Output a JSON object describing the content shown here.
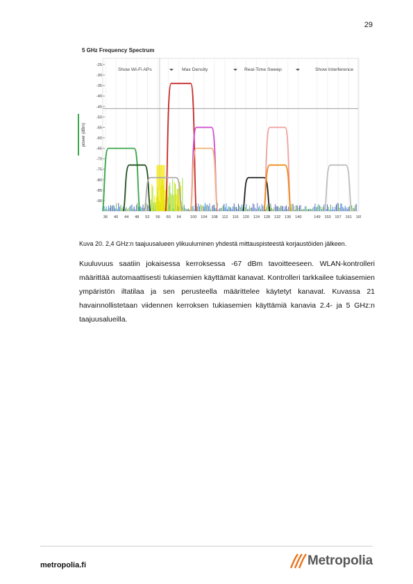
{
  "page_number": "29",
  "figure": {
    "title": "5 GHz Frequency Spectrum",
    "controls": [
      "Show Wi-Fi APs",
      "Max Density",
      "Real-Time Sweep",
      "Show Interference"
    ],
    "ylabel": "power (dBm)",
    "chart_data": {
      "type": "line",
      "title": "5 GHz Frequency Spectrum",
      "ylabel": "power (dBm)",
      "xlabel": "",
      "y_ticks": [
        "-25",
        "-30",
        "-35",
        "-40",
        "-45",
        "-50",
        "-55",
        "-60",
        "-65",
        "-70",
        "-75",
        "-80",
        "-85",
        "-90"
      ],
      "x_ticks": [
        "36",
        "40",
        "44",
        "48",
        "52",
        "56",
        "60",
        "64",
        "100",
        "104",
        "108",
        "112",
        "116",
        "120",
        "124",
        "128",
        "132",
        "136",
        "140",
        "149",
        "153",
        "157",
        "161",
        "165"
      ],
      "ylim": [
        -95,
        -22
      ],
      "threshold_dbm": -46,
      "series": [
        {
          "color": "#3aa64a",
          "start": 36,
          "end": 48,
          "peak": -65
        },
        {
          "color": "#1f4f1f",
          "start": 44,
          "end": 52,
          "peak": -73
        },
        {
          "color": "#c62828",
          "start": 60,
          "end": 100,
          "peak": -34
        },
        {
          "color": "#d24fd0",
          "start": 100,
          "end": 108,
          "peak": -55
        },
        {
          "color": "#f2b27a",
          "start": 100,
          "end": 108,
          "peak": -65
        },
        {
          "color": "#aaaaaa",
          "start": 52,
          "end": 64,
          "peak": -79
        },
        {
          "color": "#202020",
          "start": 120,
          "end": 128,
          "peak": -79
        },
        {
          "color": "#f2a0a0",
          "start": 128,
          "end": 136,
          "peak": -55
        },
        {
          "color": "#ef8a1a",
          "start": 128,
          "end": 136,
          "peak": -73
        },
        {
          "color": "#bdbdbd",
          "start": 153,
          "end": 161,
          "peak": -73
        }
      ]
    }
  },
  "caption": "Kuva 20. 2,4 GHz:n taajuusalueen ylikuuluminen yhdestä mittauspisteestä korjaustöiden jälkeen.",
  "paragraph": "Kuuluvuus saatiin jokaisessa kerroksessa -67 dBm tavoitteeseen. WLAN-kontrolleri määrittää automaattisesti tukiasemien käyttämät kanavat. Kontrolleri tarkkailee tukiasemien ympäristön iltatilaa ja sen perusteella määrittelee käytetyt kanavat. Kuvassa 21 havainnollistetaan viidennen kerroksen tukiasemien käyttämiä kanavia 2.4- ja 5 GHz:n taajuusalueilla.",
  "footer": {
    "site": "metropolia.fi",
    "logo_text": "Metropolia",
    "logo_color": "#e8731b"
  }
}
